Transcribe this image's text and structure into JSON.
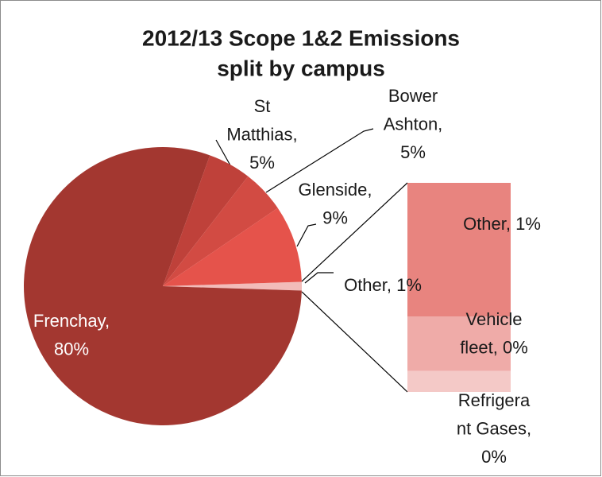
{
  "chart_data": {
    "type": "pie",
    "title": [
      "2012/13 Scope 1&2 Emissions",
      "split by campus"
    ],
    "labels": [
      [
        "Other, 1%"
      ],
      [
        "Frenchay,",
        "80%"
      ],
      [
        "St",
        "Matthias,",
        "5%"
      ],
      [
        "Bower",
        "Ashton,",
        "5%"
      ],
      [
        "Glenside,",
        "9%"
      ]
    ],
    "values": [
      1,
      80,
      5,
      5,
      9
    ],
    "colors": [
      "#f2bcb9",
      "#a33730",
      "#bf413a",
      "#d24b43",
      "#e5534b"
    ],
    "bar_of": {
      "labels": [
        [
          "Other, 1%"
        ],
        [
          "Vehicle",
          "fleet, 0%"
        ],
        [
          "Refrigera",
          "nt Gases,",
          "0%"
        ]
      ],
      "values": [
        0.64,
        0.26,
        0.1
      ],
      "colors": [
        "#e8847f",
        "#efaba8",
        "#f4c9c7"
      ]
    }
  }
}
